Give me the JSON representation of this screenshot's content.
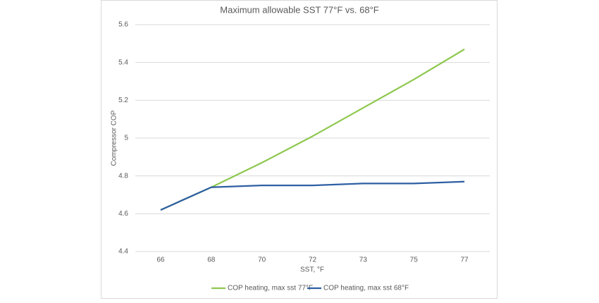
{
  "chart_data": {
    "type": "line",
    "title": "Maximum allowable SST 77°F vs. 68°F",
    "x_label": "SST, °F",
    "y_label": "Compressor COP",
    "categories": [
      "66",
      "68",
      "70",
      "72",
      "73",
      "75",
      "77"
    ],
    "series": [
      {
        "name": "COP heating, max sst 77°F",
        "color": "#8fc84f",
        "values": [
          4.62,
          4.74,
          4.87,
          5.01,
          5.16,
          5.31,
          5.47
        ]
      },
      {
        "name": "COP heating, max sst 68°F",
        "color": "#2e5fa3",
        "values": [
          4.62,
          4.74,
          4.75,
          4.75,
          4.76,
          4.76,
          4.77
        ]
      }
    ],
    "ylim": [
      4.4,
      5.6
    ],
    "yticks": [
      4.4,
      4.6,
      4.8,
      5,
      5.2,
      5.4,
      5.6
    ],
    "grid": true,
    "legend": "bottom"
  }
}
